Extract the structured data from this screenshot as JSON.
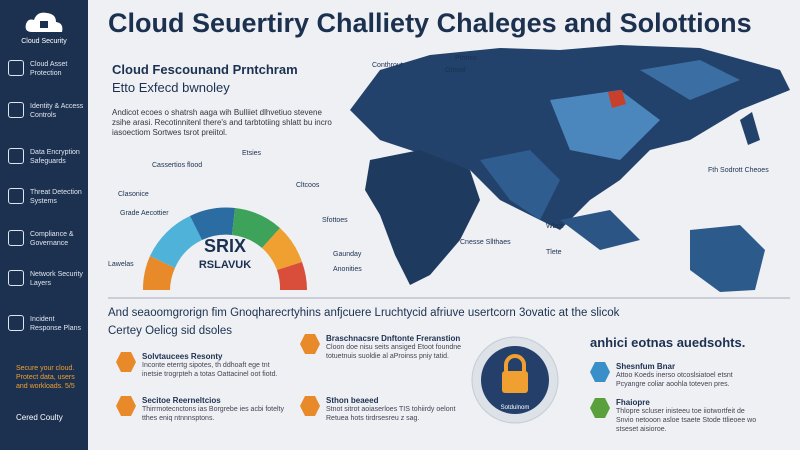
{
  "sidebar": {
    "logo_text": "Cloud Security",
    "items": [
      "Cloud Asset Protection",
      "Identity & Access Controls",
      "Data Encryption Safeguards",
      "Threat Detection Systems",
      "Compliance & Governance",
      "Network Security Layers",
      "Incident Response Plans"
    ],
    "footer_note": "Secure your cloud. Protect data, users and workloads. 5/5",
    "footer": "Cered Coulty"
  },
  "header": {
    "title": "Cloud Seuertiry Challiety Chaleges and Solottions"
  },
  "intro": {
    "heading": "Cloud Fescounand Prntchram",
    "subheading": "Etto Exfecd bwnoley",
    "body": "Andicot ecoes o shatrsh aaga wih Bulliiet dlhvetiuo stevene zsihe arasi. Recotinnitenl there's and tarbtotiing shlatt bu incro iasoectiom Sortwes tsrot preiitol."
  },
  "gauge": {
    "center_top": "SRIX",
    "center_bottom": "RSLAVUK",
    "labels": [
      "Cassertios flood",
      "Etsies",
      "Clasonice",
      "Grade Aecottier",
      "Lawelas",
      "Cltcoos",
      "Sfottoes",
      "Gaunday",
      "Anonities"
    ]
  },
  "map": {
    "labels": [
      "Conthrout",
      "Pthnes",
      "Grnvol",
      "Fth Sodrott Cheoes",
      "Cnesse Sllthaes",
      "Wbce",
      "Tlete"
    ]
  },
  "banner": {
    "line1": "And seaoomgrorign fim Gnoqharecrtyhins anfjcuere Lruchtycid afriuve usertcorn 3ovatic at the slicok",
    "line2": "Certey Oelicg sid dsoles",
    "right": "anhici eotnas auedsohts."
  },
  "features": [
    {
      "title": "Solvtaucees Resonty",
      "body": "Inconte eterrtg sipotes, th ddhoaft ege tnt inetsie trogrpteh a totas Oattacinel oot fiotd."
    },
    {
      "title": "Secitoe Reerneltcios",
      "body": "Thirrmotecnctons ias Borgrebe ies acbi fotelty tthes eniq ntnnnsptons."
    },
    {
      "title": "Braschnacsre Dnftonte Freranstion",
      "body": "Cloon doe nisu seits ansiged Etoot foundne totuetnuis suoldie al aProinss pniy tatid."
    },
    {
      "title": "Sthon beaeed",
      "body": "Stnot sitrot aoiaserloes TIS tohiirdy oelont Retuea hots tirdrsesreu z sag."
    },
    {
      "title": "Shesnfum Bnar",
      "body": "Attoo Koeds inerso otcoslsiatoel etsnt Pcyangre coliar aoohla toteven pres."
    },
    {
      "title": "Fhaiopre",
      "body": "Thlopre scluser inisteeu toe iiotwortfeit de Snvio netooon asloe tsaete Stode ttlieoee wo stseset aisioroe."
    }
  ],
  "center_badge": "Sotdulnom"
}
